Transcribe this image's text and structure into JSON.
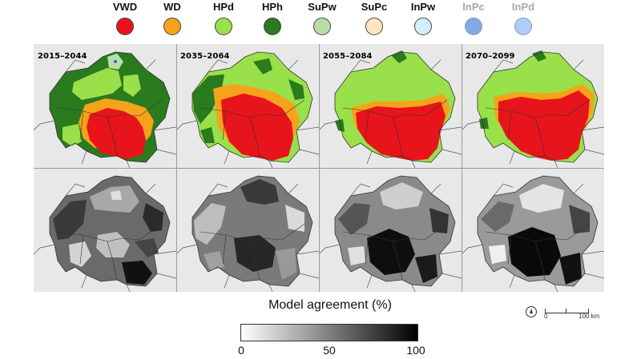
{
  "legend": [
    {
      "label": "VWD",
      "color": "#e8141b",
      "faded": false
    },
    {
      "label": "WD",
      "color": "#f5a31b",
      "faded": false
    },
    {
      "label": "HPd",
      "color": "#99e04a",
      "faded": false
    },
    {
      "label": "HPh",
      "color": "#2a7a1e",
      "faded": false
    },
    {
      "label": "SuPw",
      "color": "#b8dea6",
      "faded": false
    },
    {
      "label": "SuPc",
      "color": "#fde6bf",
      "faded": false
    },
    {
      "label": "InPw",
      "color": "#d3efff",
      "faded": false
    },
    {
      "label": "InPc",
      "color": "#7fa9e8",
      "faded": true
    },
    {
      "label": "InPd",
      "color": "#aecdfa",
      "faded": true
    }
  ],
  "periods": [
    "2015–2044",
    "2035–2064",
    "2055–2084",
    "2070–2099"
  ],
  "agreement": {
    "title": "Model agreement (%)",
    "ticks": [
      "0",
      "50",
      "100"
    ],
    "colors": [
      "#ffffff",
      "#000000"
    ]
  },
  "map_extras": {
    "scale_labels": [
      "0",
      "100 km"
    ]
  }
}
